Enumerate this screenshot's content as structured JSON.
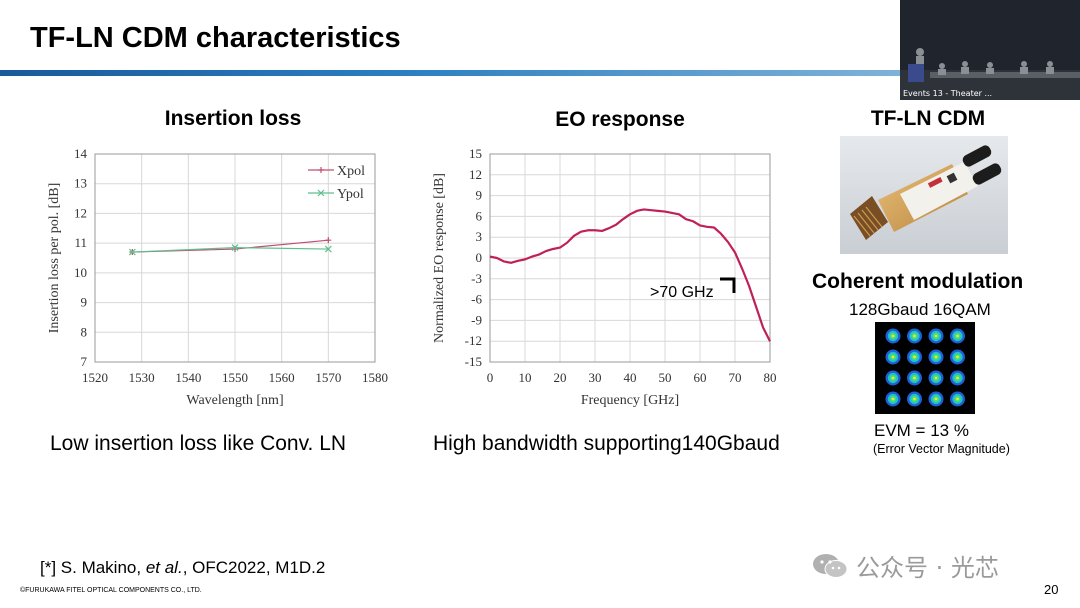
{
  "slide": {
    "title": "TF-LN CDM characteristics",
    "page_number": "20",
    "footer": "©FURUKAWA FITEL OPTICAL COMPONENTS CO., LTD.",
    "reference": {
      "prefix": "[*] S. Makino, ",
      "italic": "et al.",
      "suffix": ", OFC2022, M1D.2"
    },
    "colors": {
      "title_rule": "#2b7fc1",
      "xpol": "#c0506e",
      "ypol": "#5fbf8f",
      "eo_curve": "#c0205a"
    }
  },
  "video_inset": {
    "label": "Events 13 - Theater ..."
  },
  "insertion_loss": {
    "title": "Insertion loss",
    "caption": "Low insertion loss like Conv. LN"
  },
  "eo_response": {
    "title": "EO response",
    "caption": "High bandwidth supporting140Gbaud",
    "annotation": ">70 GHz"
  },
  "cdm": {
    "title": "TF-LN CDM",
    "modulation_title": "Coherent modulation",
    "modulation_format": "128Gbaud 16QAM",
    "evm": "EVM = 13 %",
    "evm_note": "(Error Vector Magnitude)",
    "constellation_points": 16
  },
  "watermark": {
    "text": "公众号 · 光芯",
    "icon": "wechat-icon"
  },
  "chart_data": [
    {
      "type": "line",
      "xlabel": "Wavelength [nm]",
      "ylabel": "Insertion loss per pol. [dB]",
      "xlim": [
        1520,
        1580
      ],
      "ylim": [
        7,
        14
      ],
      "xticks": [
        1520,
        1530,
        1540,
        1550,
        1560,
        1570,
        1580
      ],
      "yticks": [
        7,
        8,
        9,
        10,
        11,
        12,
        13,
        14
      ],
      "grid": true,
      "legend": "top-right",
      "x": [
        1528,
        1550,
        1570
      ],
      "series": [
        {
          "name": "Xpol",
          "values": [
            10.7,
            10.8,
            11.1
          ]
        },
        {
          "name": "Ypol",
          "values": [
            10.7,
            10.85,
            10.8
          ]
        }
      ]
    },
    {
      "type": "line",
      "xlabel": "Frequency [GHz]",
      "ylabel": "Normalized EO response [dB]",
      "xlim": [
        0,
        80
      ],
      "ylim": [
        -15,
        15
      ],
      "xticks": [
        0,
        10,
        20,
        30,
        40,
        50,
        60,
        70,
        80
      ],
      "yticks": [
        15,
        12,
        9,
        6,
        3,
        0,
        -3,
        -6,
        -9,
        -12,
        -15
      ],
      "grid": true,
      "x": [
        0,
        2,
        4,
        6,
        8,
        10,
        12,
        14,
        16,
        18,
        20,
        22,
        24,
        26,
        28,
        30,
        32,
        34,
        36,
        38,
        40,
        42,
        44,
        46,
        48,
        50,
        52,
        54,
        56,
        58,
        60,
        62,
        64,
        66,
        68,
        70,
        72,
        74,
        76,
        78,
        80
      ],
      "series": [
        {
          "values": [
            0.2,
            0,
            -0.5,
            -0.7,
            -0.4,
            -0.2,
            0.2,
            0.5,
            1,
            1.3,
            1.5,
            2.2,
            3.2,
            3.8,
            4,
            4,
            3.9,
            4.3,
            4.8,
            5.6,
            6.3,
            6.8,
            7,
            6.9,
            6.8,
            6.7,
            6.5,
            6.3,
            5.6,
            5.3,
            4.7,
            4.5,
            4.4,
            3.5,
            2.3,
            0.8,
            -1.5,
            -4,
            -7,
            -10,
            -12
          ]
        }
      ]
    }
  ]
}
